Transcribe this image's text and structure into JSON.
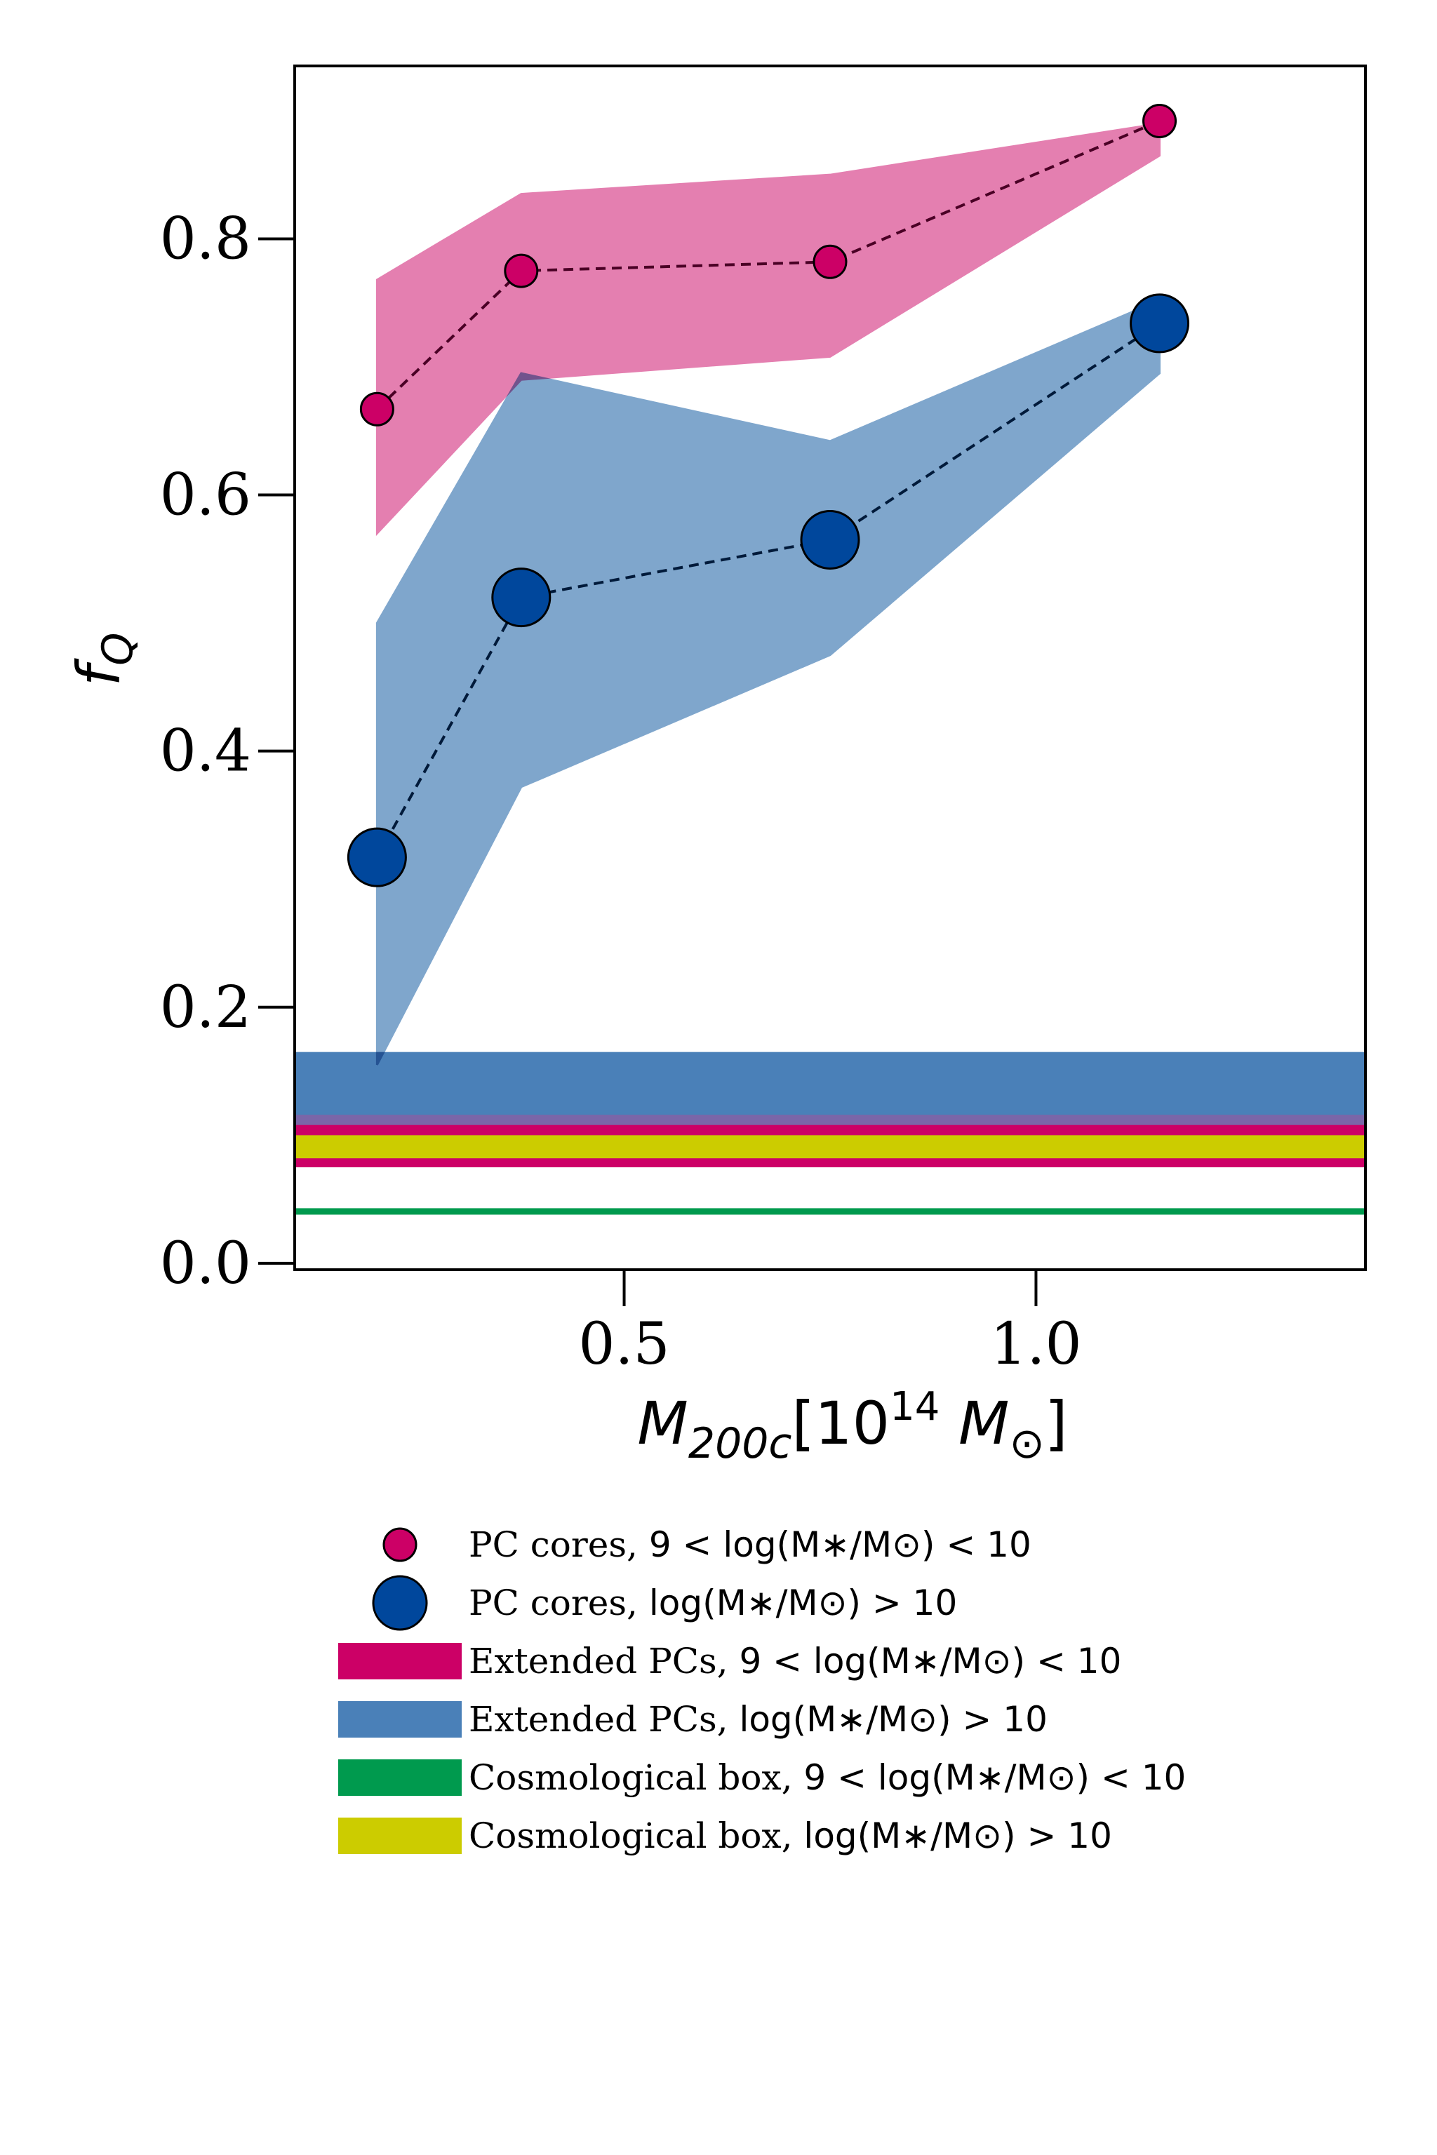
{
  "chart_data": {
    "type": "line",
    "xlabel": "M_200c[10^14 M_sun]",
    "ylabel": "f_Q",
    "xlim": [
      0.1,
      1.4
    ],
    "ylim": [
      -0.005,
      0.935
    ],
    "xticks": [
      0.5,
      1.0
    ],
    "xtick_labels": [
      "0.5",
      "1.0"
    ],
    "yticks": [
      0.0,
      0.2,
      0.4,
      0.6,
      0.8
    ],
    "ytick_labels": [
      "0.0",
      "0.2",
      "0.4",
      "0.6",
      "0.8"
    ],
    "series": [
      {
        "name": "PC cores, 9<log(M*/M☉)<10",
        "kind": "points-with-band",
        "color": "#cc0066",
        "band_color": "#e47fb0",
        "x": [
          0.2,
          0.375,
          0.75,
          1.15
        ],
        "y": [
          0.667,
          0.775,
          0.782,
          0.892
        ],
        "band_upper": [
          0.768,
          0.835,
          0.85,
          0.89
        ],
        "band_lower": [
          0.57,
          0.69,
          0.708,
          0.865
        ]
      },
      {
        "name": "PC cores, log(M*/M☉)>10",
        "kind": "points-with-band",
        "color": "#00479c",
        "band_color": "#7fa6cc",
        "x": [
          0.2,
          0.375,
          0.75,
          1.15
        ],
        "y": [
          0.317,
          0.52,
          0.565,
          0.734
        ],
        "band_upper": [
          0.5,
          0.695,
          0.642,
          0.752
        ],
        "band_lower": [
          0.155,
          0.372,
          0.475,
          0.695
        ]
      }
    ],
    "horizontal_bands": [
      {
        "name": "Extended PCs, 9<log(M*/M☉)<10",
        "color": "#cc0066",
        "y_low": 0.075,
        "y_high": 0.115
      },
      {
        "name": "Extended PCs, log(M*/M☉)>10",
        "color": "#4a80b8",
        "y_low": 0.115,
        "y_high": 0.165
      },
      {
        "name": "Cosmological box, 9<log(M*/M☉)<10",
        "color": "#009a4e",
        "y_low": 0.038,
        "y_high": 0.043
      },
      {
        "name": "Cosmological box, log(M*/M☉)>10",
        "color": "#cccc00",
        "y_low": 0.082,
        "y_high": 0.1
      }
    ],
    "band_overlap_color": "#7a66a8",
    "legend": {
      "placement": "below",
      "entries": [
        {
          "prefix": "PC cores, ",
          "math": "9 < log(M∗/M⊙) < 10",
          "marker": "circle-small",
          "color": "#cc0066"
        },
        {
          "prefix": "PC cores, ",
          "math": "log(M∗/M⊙) > 10",
          "marker": "circle-large",
          "color": "#00479c"
        },
        {
          "prefix": "Extended PCs, ",
          "math": "9 < log(M∗/M⊙) < 10",
          "marker": "patch",
          "color": "#cc0066"
        },
        {
          "prefix": "Extended PCs, ",
          "math": "log(M∗/M⊙) > 10",
          "marker": "patch",
          "color": "#4a80b8"
        },
        {
          "prefix": "Cosmological box, ",
          "math": "9 < log(M∗/M⊙) < 10",
          "marker": "patch",
          "color": "#009a4e"
        },
        {
          "prefix": "Cosmological box, ",
          "math": "log(M∗/M⊙) > 10",
          "marker": "patch",
          "color": "#cccc00"
        }
      ]
    }
  }
}
